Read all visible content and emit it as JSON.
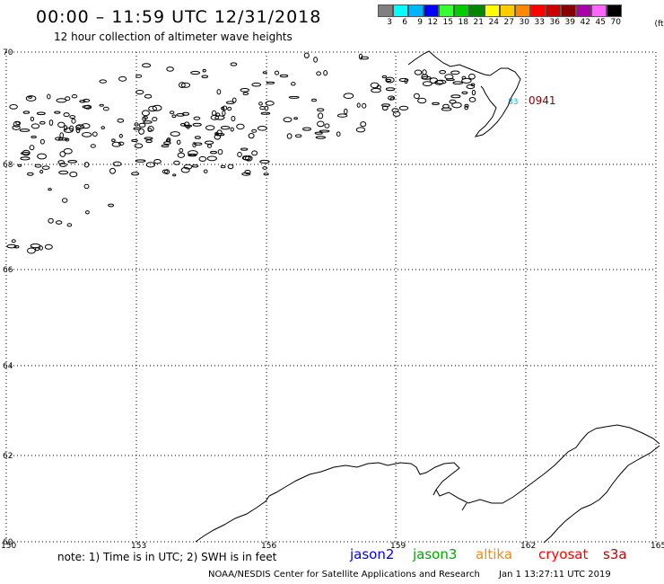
{
  "header": {
    "title": "00:00 – 11:59 UTC 12/31/2018",
    "subtitle": "12 hour collection of altimeter wave heights"
  },
  "color_scale": {
    "unit": "(ft)",
    "bins": [
      {
        "label": "3",
        "color": "#808080"
      },
      {
        "label": "6",
        "color": "#00ffff"
      },
      {
        "label": "9",
        "color": "#00b4ff"
      },
      {
        "label": "12",
        "color": "#0000ff"
      },
      {
        "label": "15",
        "color": "#33ff33"
      },
      {
        "label": "18",
        "color": "#00cc00"
      },
      {
        "label": "21",
        "color": "#008800"
      },
      {
        "label": "24",
        "color": "#ffff00"
      },
      {
        "label": "27",
        "color": "#ffcc00"
      },
      {
        "label": "30",
        "color": "#ff8800"
      },
      {
        "label": "33",
        "color": "#ff0000"
      },
      {
        "label": "36",
        "color": "#cc0000"
      },
      {
        "label": "39",
        "color": "#880000"
      },
      {
        "label": "42",
        "color": "#aa00aa"
      },
      {
        "label": "45",
        "color": "#ff66ff"
      },
      {
        "label": "70",
        "color": "#000000"
      }
    ]
  },
  "map": {
    "lon_labels": [
      "150",
      "153",
      "156",
      "159",
      "162",
      "165"
    ],
    "lat_labels": [
      "70",
      "68",
      "66",
      "64",
      "62",
      "60"
    ],
    "track_labels": [
      {
        "text": "0941",
        "color": "#880000"
      },
      {
        "text": "83",
        "color": "#00bbdd"
      }
    ]
  },
  "note": "note: 1) Time is in UTC; 2) SWH is in feet",
  "satellites": [
    {
      "name": "jason2",
      "color": "#0000ff"
    },
    {
      "name": "jason3",
      "color": "#00aa00"
    },
    {
      "name": "altika",
      "color": "#ff8800"
    },
    {
      "name": "cryosat",
      "color": "#ff0000"
    },
    {
      "name": "s3a",
      "color": "#cc0000"
    }
  ],
  "footer": {
    "credit": "NOAA/NESDIS Center for Satellite Applications and Research",
    "timestamp": "Jan  1 13:27:11 UTC 2019"
  }
}
